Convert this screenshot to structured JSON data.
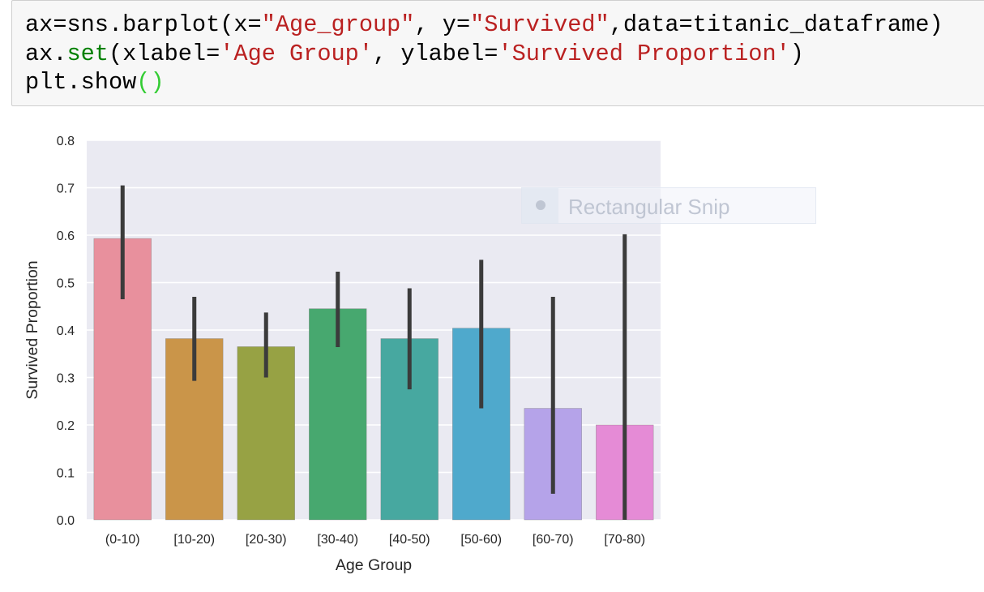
{
  "code_cell": {
    "lines": [
      [
        {
          "t": "ax=sns.barplot(x=",
          "c": "plain"
        },
        {
          "t": "\"Age_group\"",
          "c": "str"
        },
        {
          "t": ", y=",
          "c": "plain"
        },
        {
          "t": "\"Survived\"",
          "c": "str"
        },
        {
          "t": ",data=titanic_dataframe)",
          "c": "plain"
        }
      ],
      [
        {
          "t": "ax.",
          "c": "plain"
        },
        {
          "t": "set",
          "c": "fn"
        },
        {
          "t": "(xlabel=",
          "c": "plain"
        },
        {
          "t": "'Age Group'",
          "c": "str"
        },
        {
          "t": ", ylabel=",
          "c": "plain"
        },
        {
          "t": "'Survived Proportion'",
          "c": "str"
        },
        {
          "t": ")",
          "c": "plain"
        }
      ],
      [
        {
          "t": "plt.show",
          "c": "plain"
        },
        {
          "t": "()",
          "c": "paren"
        }
      ]
    ]
  },
  "snip_overlay": {
    "label": "Rectangular Snip"
  },
  "chart_data": {
    "type": "bar",
    "categories": [
      "(0-10)",
      "[10-20)",
      "[20-30)",
      "[30-40)",
      "[40-50)",
      "[50-60)",
      "[60-70)",
      "[70-80)"
    ],
    "values": [
      0.593,
      0.382,
      0.365,
      0.445,
      0.382,
      0.404,
      0.235,
      0.2
    ],
    "ci_low": [
      0.465,
      0.293,
      0.3,
      0.364,
      0.275,
      0.235,
      0.055,
      0.0
    ],
    "ci_high": [
      0.705,
      0.47,
      0.437,
      0.523,
      0.488,
      0.548,
      0.47,
      0.602
    ],
    "colors": [
      "#e8909d",
      "#ca9549",
      "#97a244",
      "#47a86f",
      "#47a8a0",
      "#4fa9cc",
      "#b5a3e9",
      "#e58bd6"
    ],
    "title": "",
    "xlabel": "Age Group",
    "ylabel": "Survived Proportion",
    "ylim": [
      0,
      0.8
    ],
    "yticks": [
      "0.0",
      "0.1",
      "0.2",
      "0.3",
      "0.4",
      "0.5",
      "0.6",
      "0.7",
      "0.8"
    ],
    "grid": true,
    "background": "#eaeaf2",
    "errorbar_color": "#3b3b3b"
  }
}
